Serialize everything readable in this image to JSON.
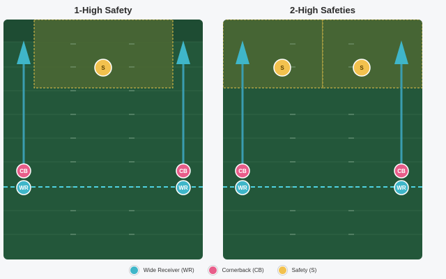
{
  "panels": [
    {
      "title": "1-High Safety",
      "players": {
        "corner_label": "CB",
        "receiver_label": "WR",
        "safety_label": "S"
      },
      "safety_zones": 1
    },
    {
      "title": "2-High Safeties",
      "players": {
        "corner_label": "CB",
        "receiver_label": "WR",
        "safety_label": "S"
      },
      "safety_zones": 2
    }
  ],
  "legend": [
    {
      "label": "Wide Receiver (WR)",
      "color": "#3fb6c9"
    },
    {
      "label": "Cornerback (CB)",
      "color": "#e85d8a"
    },
    {
      "label": "Safety (S)",
      "color": "#f2c14e"
    }
  ],
  "colors": {
    "field": "#23573a",
    "field_end": "#1e4c33",
    "zone": "#4a6634",
    "zone_border": "#e8c34a",
    "route": "#3a9db0",
    "scrimmage": "#4fd1e0"
  }
}
